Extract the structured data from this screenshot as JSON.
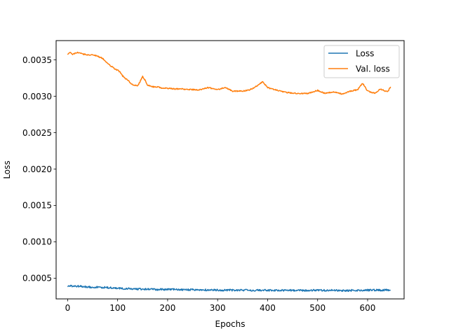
{
  "chart_data": {
    "type": "line",
    "xlabel": "Epochs",
    "ylabel": "Loss",
    "xlim": [
      -23,
      673
    ],
    "ylim": [
      0.000215,
      0.003765
    ],
    "xticks": [
      0,
      100,
      200,
      300,
      400,
      500,
      600
    ],
    "yticks": [
      0.0005,
      0.001,
      0.0015,
      0.002,
      0.0025,
      0.003,
      0.0035
    ],
    "ytick_labels": [
      "0.0005",
      "0.0010",
      "0.0015",
      "0.0020",
      "0.0025",
      "0.0030",
      "0.0035"
    ],
    "grid": false,
    "legend_position": "top-right",
    "series": [
      {
        "name": "Loss",
        "color": "#1f77b4",
        "x": [
          0,
          20,
          40,
          60,
          80,
          100,
          120,
          140,
          160,
          180,
          200,
          220,
          240,
          260,
          280,
          300,
          320,
          340,
          360,
          380,
          400,
          420,
          440,
          460,
          480,
          500,
          520,
          540,
          560,
          580,
          600,
          620,
          646
        ],
        "values": [
          0.00039,
          0.00039,
          0.00038,
          0.000375,
          0.00037,
          0.00036,
          0.000355,
          0.00035,
          0.000348,
          0.000345,
          0.000345,
          0.000343,
          0.00034,
          0.00034,
          0.000338,
          0.000337,
          0.000336,
          0.000335,
          0.000334,
          0.000334,
          0.000333,
          0.000333,
          0.000332,
          0.000332,
          0.000332,
          0.000333,
          0.000332,
          0.000331,
          0.000331,
          0.000333,
          0.000335,
          0.000336,
          0.000336
        ]
      },
      {
        "name": "Val. loss",
        "color": "#ff7f0e",
        "x": [
          0,
          5,
          10,
          20,
          30,
          40,
          50,
          60,
          70,
          80,
          90,
          95,
          100,
          105,
          110,
          120,
          130,
          140,
          150,
          155,
          160,
          170,
          180,
          190,
          200,
          215,
          230,
          250,
          265,
          280,
          300,
          315,
          330,
          350,
          365,
          380,
          390,
          400,
          420,
          440,
          460,
          480,
          500,
          515,
          530,
          550,
          565,
          580,
          590,
          600,
          615,
          625,
          640,
          646
        ],
        "values": [
          0.00358,
          0.0036,
          0.00358,
          0.0036,
          0.00358,
          0.00357,
          0.00357,
          0.00355,
          0.00352,
          0.00345,
          0.0034,
          0.00337,
          0.00336,
          0.00333,
          0.00328,
          0.00322,
          0.00316,
          0.00314,
          0.00327,
          0.00322,
          0.00315,
          0.00313,
          0.00313,
          0.00311,
          0.00311,
          0.0031,
          0.0031,
          0.00309,
          0.00309,
          0.00312,
          0.00309,
          0.00312,
          0.00307,
          0.00307,
          0.00309,
          0.00315,
          0.0032,
          0.00312,
          0.00308,
          0.00305,
          0.00304,
          0.00304,
          0.00308,
          0.00304,
          0.00306,
          0.00303,
          0.00307,
          0.00309,
          0.00318,
          0.00307,
          0.00304,
          0.0031,
          0.00306,
          0.00313
        ]
      }
    ]
  }
}
